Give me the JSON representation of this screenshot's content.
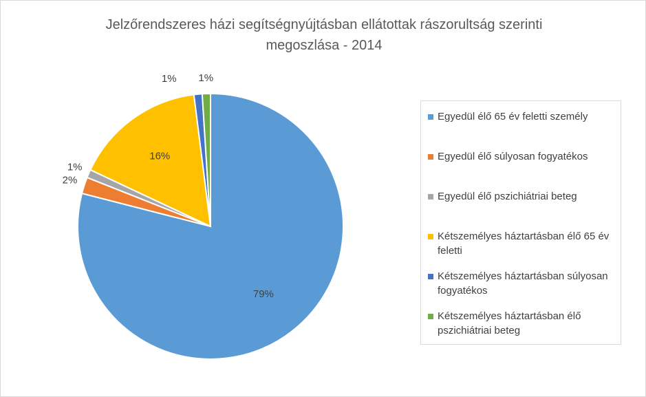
{
  "chart_data": {
    "type": "pie",
    "title": "Jelzőrendszeres házi segítségnyújtásban ellátottak rászorultság szerinti megoszlása - 2014",
    "categories": [
      "Egyedül élő 65 év feletti személy",
      "Egyedül élő súlyosan fogyatékos",
      "Egyedül élő pszichiátriai beteg",
      "Kétszemélyes háztartásban élő 65 év feletti",
      "Kétszemélyes háztartásban súlyosan fogyatékos",
      "Kétszemélyes háztartásban élő pszichiátriai beteg"
    ],
    "values": [
      79,
      2,
      1,
      16,
      1,
      1
    ],
    "value_labels": [
      "79%",
      "2%",
      "1%",
      "16%",
      "1%",
      "1%"
    ],
    "colors": [
      "#5b9bd5",
      "#ed7d31",
      "#a5a5a5",
      "#ffc000",
      "#4472c4",
      "#70ad47"
    ],
    "legend": "right"
  }
}
